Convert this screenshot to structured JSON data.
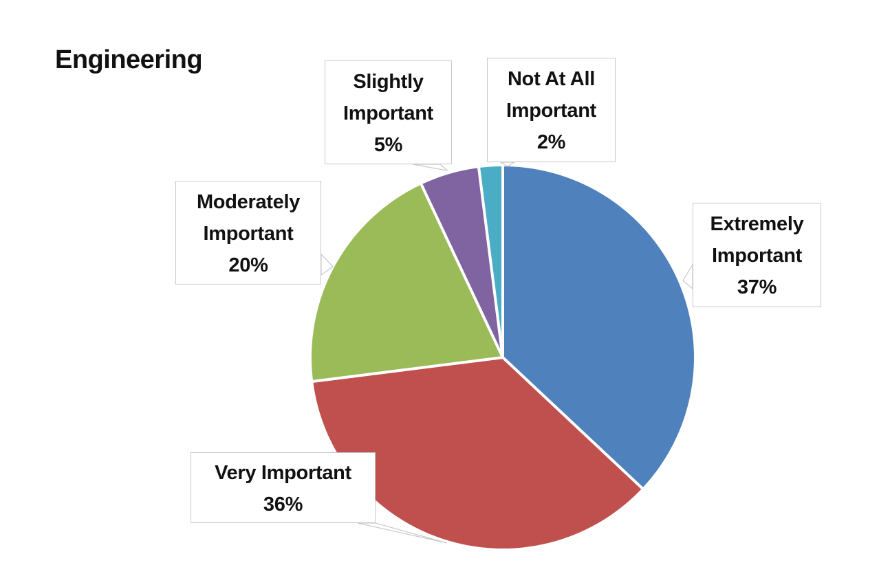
{
  "title": "Engineering",
  "chart_data": {
    "type": "pie",
    "title": "Engineering",
    "categories": [
      "Extremely Important",
      "Very Important",
      "Moderately Important",
      "Slightly Important",
      "Not At All Important"
    ],
    "values": [
      37,
      36,
      20,
      5,
      2
    ],
    "unit": "%",
    "colors": [
      "#4F81BD",
      "#C0504D",
      "#9BBB59",
      "#8064A2",
      "#4BACC6"
    ],
    "start_angle": "12 o'clock, clockwise",
    "legend": "none (callout data labels)",
    "labels": [
      {
        "lines": [
          "Extremely",
          "Important",
          "37%"
        ]
      },
      {
        "lines": [
          "Very Important",
          "36%"
        ]
      },
      {
        "lines": [
          "Moderately",
          "Important",
          "20%"
        ]
      },
      {
        "lines": [
          "Slightly",
          "Important",
          "5%"
        ]
      },
      {
        "lines": [
          "Not At All",
          "Important",
          "2%"
        ]
      }
    ]
  }
}
